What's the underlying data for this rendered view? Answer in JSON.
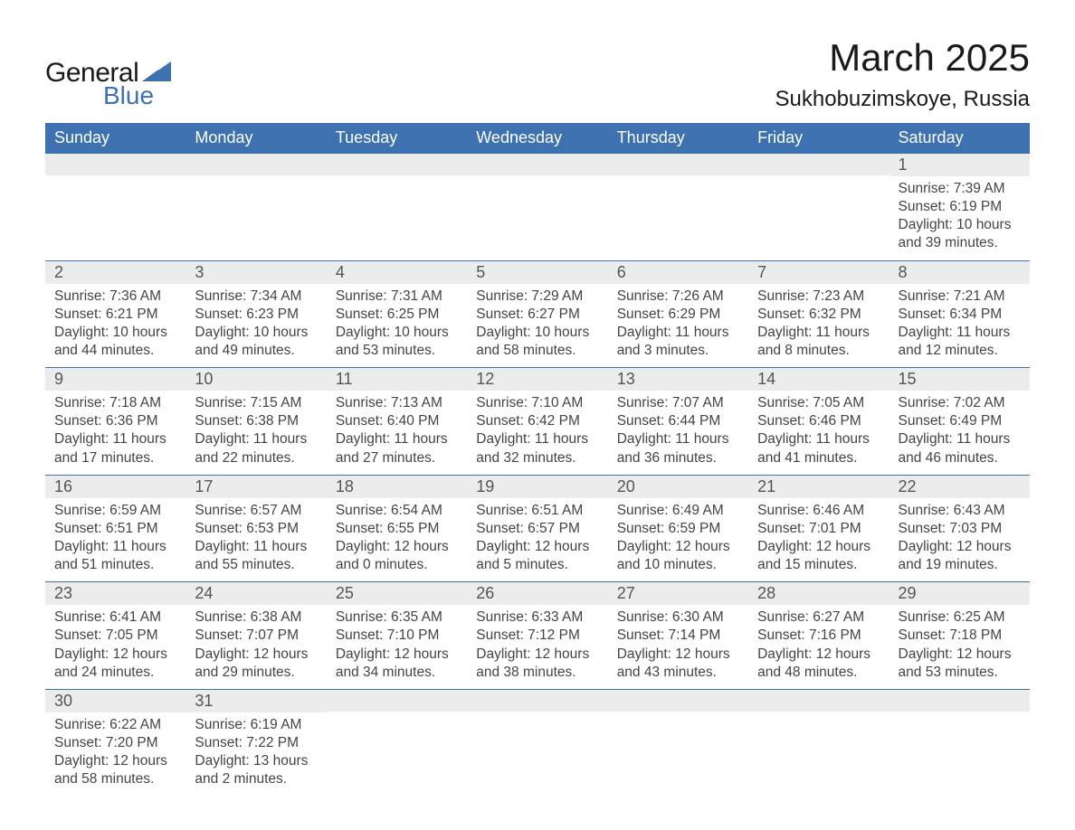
{
  "brand": {
    "word1": "General",
    "word2": "Blue",
    "logo_color": "#3d71b0",
    "text_color": "#1a1a1a"
  },
  "title": "March 2025",
  "location": "Sukhobuzimskoye, Russia",
  "colors": {
    "header_bg": "#3d71b0",
    "header_text": "#ffffff",
    "daynum_bg": "#ececec",
    "body_text": "#444444",
    "row_border": "#3d71b0",
    "page_bg": "#ffffff"
  },
  "fonts": {
    "title_size_pt": 42,
    "location_size_pt": 24,
    "weekday_size_pt": 18,
    "daynum_size_pt": 18,
    "body_size_pt": 15.5
  },
  "weekdays": [
    "Sunday",
    "Monday",
    "Tuesday",
    "Wednesday",
    "Thursday",
    "Friday",
    "Saturday"
  ],
  "weeks": [
    [
      null,
      null,
      null,
      null,
      null,
      null,
      {
        "n": "1",
        "sunrise": "7:39 AM",
        "sunset": "6:19 PM",
        "daylight": "10 hours and 39 minutes."
      }
    ],
    [
      {
        "n": "2",
        "sunrise": "7:36 AM",
        "sunset": "6:21 PM",
        "daylight": "10 hours and 44 minutes."
      },
      {
        "n": "3",
        "sunrise": "7:34 AM",
        "sunset": "6:23 PM",
        "daylight": "10 hours and 49 minutes."
      },
      {
        "n": "4",
        "sunrise": "7:31 AM",
        "sunset": "6:25 PM",
        "daylight": "10 hours and 53 minutes."
      },
      {
        "n": "5",
        "sunrise": "7:29 AM",
        "sunset": "6:27 PM",
        "daylight": "10 hours and 58 minutes."
      },
      {
        "n": "6",
        "sunrise": "7:26 AM",
        "sunset": "6:29 PM",
        "daylight": "11 hours and 3 minutes."
      },
      {
        "n": "7",
        "sunrise": "7:23 AM",
        "sunset": "6:32 PM",
        "daylight": "11 hours and 8 minutes."
      },
      {
        "n": "8",
        "sunrise": "7:21 AM",
        "sunset": "6:34 PM",
        "daylight": "11 hours and 12 minutes."
      }
    ],
    [
      {
        "n": "9",
        "sunrise": "7:18 AM",
        "sunset": "6:36 PM",
        "daylight": "11 hours and 17 minutes."
      },
      {
        "n": "10",
        "sunrise": "7:15 AM",
        "sunset": "6:38 PM",
        "daylight": "11 hours and 22 minutes."
      },
      {
        "n": "11",
        "sunrise": "7:13 AM",
        "sunset": "6:40 PM",
        "daylight": "11 hours and 27 minutes."
      },
      {
        "n": "12",
        "sunrise": "7:10 AM",
        "sunset": "6:42 PM",
        "daylight": "11 hours and 32 minutes."
      },
      {
        "n": "13",
        "sunrise": "7:07 AM",
        "sunset": "6:44 PM",
        "daylight": "11 hours and 36 minutes."
      },
      {
        "n": "14",
        "sunrise": "7:05 AM",
        "sunset": "6:46 PM",
        "daylight": "11 hours and 41 minutes."
      },
      {
        "n": "15",
        "sunrise": "7:02 AM",
        "sunset": "6:49 PM",
        "daylight": "11 hours and 46 minutes."
      }
    ],
    [
      {
        "n": "16",
        "sunrise": "6:59 AM",
        "sunset": "6:51 PM",
        "daylight": "11 hours and 51 minutes."
      },
      {
        "n": "17",
        "sunrise": "6:57 AM",
        "sunset": "6:53 PM",
        "daylight": "11 hours and 55 minutes."
      },
      {
        "n": "18",
        "sunrise": "6:54 AM",
        "sunset": "6:55 PM",
        "daylight": "12 hours and 0 minutes."
      },
      {
        "n": "19",
        "sunrise": "6:51 AM",
        "sunset": "6:57 PM",
        "daylight": "12 hours and 5 minutes."
      },
      {
        "n": "20",
        "sunrise": "6:49 AM",
        "sunset": "6:59 PM",
        "daylight": "12 hours and 10 minutes."
      },
      {
        "n": "21",
        "sunrise": "6:46 AM",
        "sunset": "7:01 PM",
        "daylight": "12 hours and 15 minutes."
      },
      {
        "n": "22",
        "sunrise": "6:43 AM",
        "sunset": "7:03 PM",
        "daylight": "12 hours and 19 minutes."
      }
    ],
    [
      {
        "n": "23",
        "sunrise": "6:41 AM",
        "sunset": "7:05 PM",
        "daylight": "12 hours and 24 minutes."
      },
      {
        "n": "24",
        "sunrise": "6:38 AM",
        "sunset": "7:07 PM",
        "daylight": "12 hours and 29 minutes."
      },
      {
        "n": "25",
        "sunrise": "6:35 AM",
        "sunset": "7:10 PM",
        "daylight": "12 hours and 34 minutes."
      },
      {
        "n": "26",
        "sunrise": "6:33 AM",
        "sunset": "7:12 PM",
        "daylight": "12 hours and 38 minutes."
      },
      {
        "n": "27",
        "sunrise": "6:30 AM",
        "sunset": "7:14 PM",
        "daylight": "12 hours and 43 minutes."
      },
      {
        "n": "28",
        "sunrise": "6:27 AM",
        "sunset": "7:16 PM",
        "daylight": "12 hours and 48 minutes."
      },
      {
        "n": "29",
        "sunrise": "6:25 AM",
        "sunset": "7:18 PM",
        "daylight": "12 hours and 53 minutes."
      }
    ],
    [
      {
        "n": "30",
        "sunrise": "6:22 AM",
        "sunset": "7:20 PM",
        "daylight": "12 hours and 58 minutes."
      },
      {
        "n": "31",
        "sunrise": "6:19 AM",
        "sunset": "7:22 PM",
        "daylight": "13 hours and 2 minutes."
      },
      null,
      null,
      null,
      null,
      null
    ]
  ],
  "labels": {
    "sunrise": "Sunrise: ",
    "sunset": "Sunset: ",
    "daylight": "Daylight: "
  }
}
